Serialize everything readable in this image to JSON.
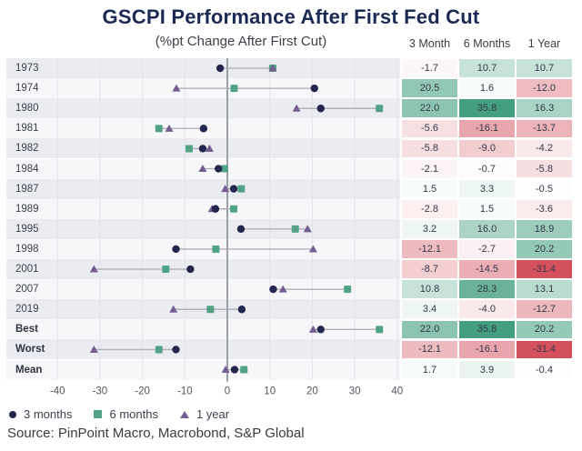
{
  "title": "GSCPI Performance After First Fed Cut",
  "subtitle": "(%pt Change After First Cut)",
  "source": "Source: PinPoint Macro, Macrobond, S&P Global",
  "table": {
    "columns": [
      "3 Month",
      "6 Months",
      "1 Year"
    ]
  },
  "legend": [
    {
      "label": "3 months",
      "shape": "circle",
      "color": "#23264d"
    },
    {
      "label": "6 months",
      "shape": "square",
      "color": "#52a287"
    },
    {
      "label": "1 year",
      "shape": "triangle",
      "color": "#755d92"
    }
  ],
  "colors": {
    "title": "#1b2a52",
    "band_dark": "#ebecf1",
    "band_light": "#f7f7fa",
    "zero_line": "#9aa0a8",
    "grid_line": "#e3e3e9",
    "connector": "#b0b0b8",
    "marker_3m": "#23264d",
    "marker_6m": "#52a287",
    "marker_1y": "#755d92",
    "heat_green_max": "#429e7f",
    "heat_red_max": "#d24d59"
  },
  "chart_data": {
    "type": "scatter",
    "variant": "horizontal-dot-plot-with-heat-table",
    "categories": [
      "1973",
      "1974",
      "1980",
      "1981",
      "1982",
      "1984",
      "1987",
      "1989",
      "1995",
      "1998",
      "2001",
      "2007",
      "2019",
      "Best",
      "Worst",
      "Mean"
    ],
    "bold_categories": [
      "Best",
      "Worst",
      "Mean"
    ],
    "series": [
      {
        "name": "3 months",
        "marker": "circle",
        "values": [
          -1.7,
          20.5,
          22.0,
          -5.6,
          -5.8,
          -2.1,
          1.5,
          -2.8,
          3.2,
          -12.1,
          -8.7,
          10.8,
          3.4,
          22.0,
          -12.1,
          1.7
        ]
      },
      {
        "name": "6 months",
        "marker": "square",
        "values": [
          10.7,
          1.6,
          35.8,
          -16.1,
          -9.0,
          -0.7,
          3.3,
          1.5,
          16.0,
          -2.7,
          -14.5,
          28.3,
          -4.0,
          35.8,
          -16.1,
          3.9
        ]
      },
      {
        "name": "1 year",
        "marker": "triangle",
        "values": [
          10.7,
          -12.0,
          16.3,
          -13.7,
          -4.2,
          -5.8,
          -0.5,
          -3.6,
          18.9,
          20.2,
          -31.4,
          13.1,
          -12.7,
          20.2,
          -31.4,
          -0.4
        ]
      }
    ],
    "xlabel": "",
    "ylabel": "",
    "xlim": [
      -45,
      45
    ],
    "xticks": [
      -40,
      -30,
      -20,
      -10,
      0,
      10,
      20,
      30,
      40
    ],
    "grid": true,
    "legend_position": "bottom"
  }
}
